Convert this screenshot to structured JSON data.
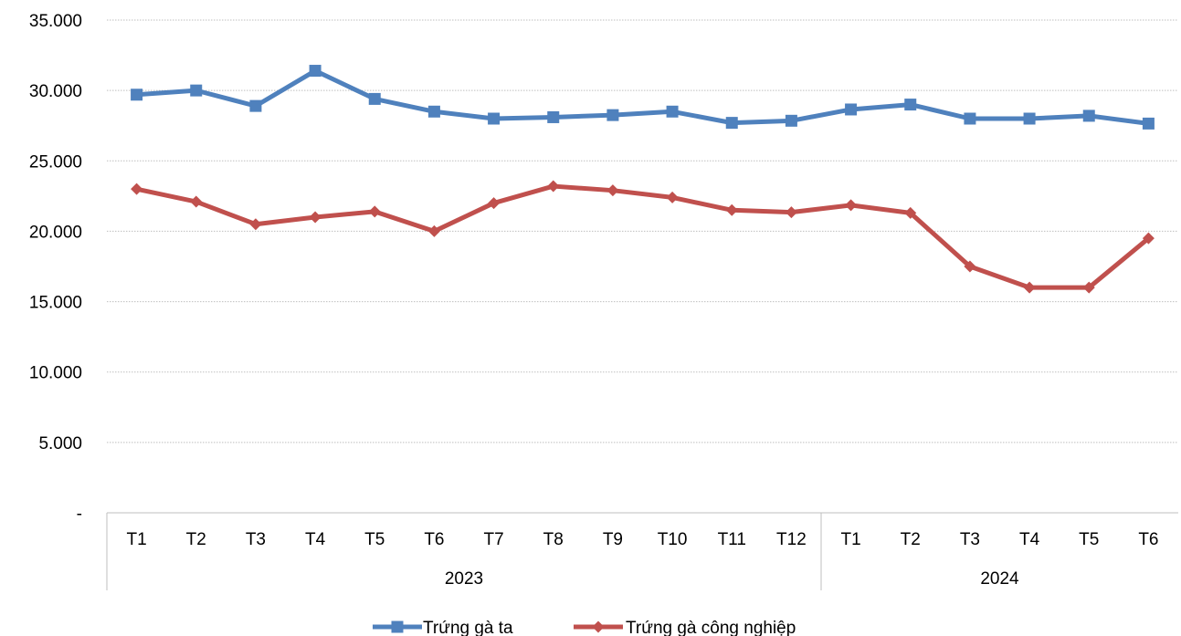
{
  "chart_data": {
    "type": "line",
    "categories": [
      "T1",
      "T2",
      "T3",
      "T4",
      "T5",
      "T6",
      "T7",
      "T8",
      "T9",
      "T10",
      "T11",
      "T12",
      "T1",
      "T2",
      "T3",
      "T4",
      "T5",
      "T6"
    ],
    "groups": [
      {
        "label": "2023",
        "count": 12
      },
      {
        "label": "2024",
        "count": 6
      }
    ],
    "series": [
      {
        "name": "Trứng gà ta",
        "color": "#4f81bd",
        "marker": "square",
        "values": [
          29700,
          30000,
          28900,
          31400,
          29400,
          28500,
          28000,
          28100,
          28250,
          28500,
          27700,
          27850,
          28650,
          29000,
          28000,
          28000,
          28200,
          27650
        ]
      },
      {
        "name": "Trứng gà công nghiệp",
        "color": "#c0504d",
        "marker": "diamond",
        "values": [
          23000,
          22100,
          20500,
          21000,
          21400,
          20000,
          22000,
          23200,
          22900,
          22400,
          21500,
          21350,
          21850,
          21300,
          17500,
          16000,
          16000,
          19500
        ]
      }
    ],
    "ylim": [
      0,
      35000
    ],
    "yticks": [
      {
        "value": 0,
        "label": "-"
      },
      {
        "value": 5000,
        "label": "5.000"
      },
      {
        "value": 10000,
        "label": "10.000"
      },
      {
        "value": 15000,
        "label": "15.000"
      },
      {
        "value": 20000,
        "label": "20.000"
      },
      {
        "value": 25000,
        "label": "25.000"
      },
      {
        "value": 30000,
        "label": "30.000"
      },
      {
        "value": 35000,
        "label": "35.000"
      }
    ],
    "grid": true,
    "legend_position": "bottom",
    "title": "",
    "xlabel": "",
    "ylabel": ""
  }
}
